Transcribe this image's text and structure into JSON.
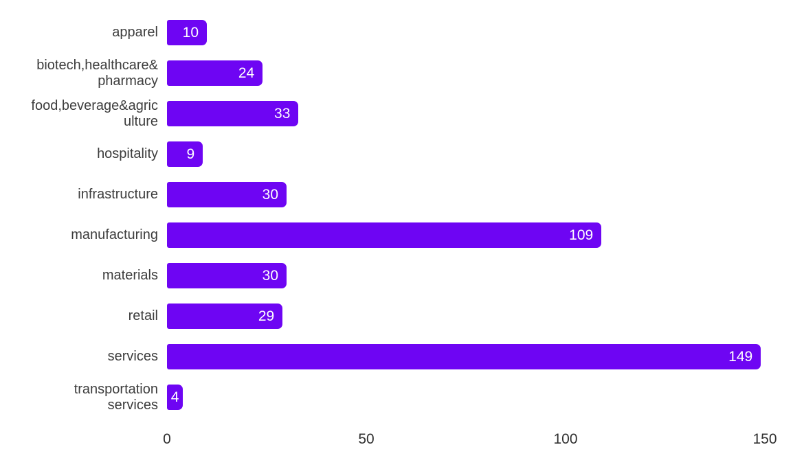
{
  "chart_data": {
    "type": "bar",
    "orientation": "horizontal",
    "title": "",
    "xlabel": "",
    "ylabel": "",
    "categories": [
      "apparel",
      "biotech,healthcare&\npharmacy",
      "food,beverage&agric\nulture",
      "hospitality",
      "infrastructure",
      "manufacturing",
      "materials",
      "retail",
      "services",
      "transportation\nservices"
    ],
    "values": [
      10,
      24,
      33,
      9,
      30,
      109,
      30,
      29,
      149,
      4
    ],
    "xticks": [
      "0",
      "50",
      "100",
      "150"
    ],
    "xtick_values": [
      0,
      50,
      100,
      150
    ],
    "xlim": [
      0,
      150
    ],
    "grid": false,
    "legend": false,
    "colors": {
      "bar": "#6e05f3",
      "value_label": "#ffffff",
      "category_label": "#3d3d3d",
      "tick_label": "#303030",
      "background": "#ffffff"
    }
  }
}
